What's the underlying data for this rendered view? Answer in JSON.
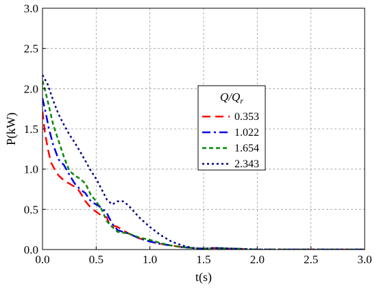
{
  "chart_data": {
    "type": "line",
    "xlabel": "t(s)",
    "ylabel": "P(kW)",
    "xlim": [
      0,
      3.0
    ],
    "ylim": [
      0,
      3.0
    ],
    "xticks": [
      "0.0",
      "0.5",
      "1.0",
      "1.5",
      "2.0",
      "2.5",
      "3.0"
    ],
    "yticks": [
      "0.0",
      "0.5",
      "1.0",
      "1.5",
      "2.0",
      "2.5",
      "3.0"
    ],
    "grid": true,
    "legend": {
      "title": "Q/Qr",
      "placement": "center-right"
    },
    "series": [
      {
        "name": "0.353",
        "color": "#ff0000",
        "dash": "dash",
        "x": [
          0.0,
          0.02,
          0.05,
          0.08,
          0.12,
          0.15,
          0.2,
          0.25,
          0.3,
          0.33,
          0.36,
          0.4,
          0.45,
          0.5,
          0.55,
          0.6,
          0.62,
          0.65,
          0.7,
          0.8,
          0.9,
          1.0,
          1.1,
          1.2,
          1.3,
          1.4,
          1.5,
          1.6,
          1.7,
          1.8,
          2.0,
          2.5,
          3.0
        ],
        "y": [
          1.72,
          1.48,
          1.25,
          1.08,
          0.98,
          0.92,
          0.86,
          0.82,
          0.78,
          0.75,
          0.69,
          0.6,
          0.52,
          0.47,
          0.42,
          0.4,
          0.32,
          0.3,
          0.28,
          0.2,
          0.14,
          0.1,
          0.07,
          0.05,
          0.03,
          0.02,
          0.01,
          0.02,
          0.01,
          0.01,
          0.0,
          0.0,
          0.0
        ]
      },
      {
        "name": "1.022",
        "color": "#0000ee",
        "dash": "dashdot",
        "x": [
          0.0,
          0.03,
          0.06,
          0.1,
          0.15,
          0.2,
          0.25,
          0.3,
          0.35,
          0.4,
          0.45,
          0.5,
          0.55,
          0.6,
          0.65,
          0.7,
          0.8,
          0.9,
          1.0,
          1.1,
          1.2,
          1.3,
          1.4,
          1.5,
          1.6,
          1.8,
          2.0,
          2.5,
          3.0
        ],
        "y": [
          1.88,
          1.7,
          1.5,
          1.3,
          1.12,
          1.05,
          0.93,
          0.82,
          0.75,
          0.7,
          0.6,
          0.56,
          0.52,
          0.45,
          0.32,
          0.24,
          0.2,
          0.14,
          0.1,
          0.07,
          0.05,
          0.03,
          0.02,
          0.01,
          0.02,
          0.01,
          0.0,
          0.0,
          0.0
        ]
      },
      {
        "name": "1.654",
        "color": "#008800",
        "dash": "shortdash",
        "x": [
          0.0,
          0.03,
          0.06,
          0.1,
          0.15,
          0.2,
          0.25,
          0.3,
          0.35,
          0.4,
          0.45,
          0.5,
          0.55,
          0.6,
          0.65,
          0.7,
          0.8,
          0.9,
          1.0,
          1.1,
          1.2,
          1.3,
          1.4,
          1.5,
          1.6,
          1.8,
          2.0,
          2.5,
          3.0
        ],
        "y": [
          2.1,
          1.95,
          1.78,
          1.55,
          1.35,
          1.15,
          0.98,
          0.92,
          0.88,
          0.82,
          0.68,
          0.6,
          0.5,
          0.35,
          0.28,
          0.22,
          0.2,
          0.15,
          0.12,
          0.08,
          0.05,
          0.03,
          0.02,
          0.01,
          0.02,
          0.01,
          0.0,
          0.0,
          0.0
        ]
      },
      {
        "name": "2.343",
        "color": "#000080",
        "dash": "dot",
        "x": [
          0.0,
          0.05,
          0.1,
          0.15,
          0.2,
          0.25,
          0.3,
          0.35,
          0.4,
          0.45,
          0.5,
          0.55,
          0.6,
          0.65,
          0.7,
          0.75,
          0.8,
          0.9,
          1.0,
          1.1,
          1.2,
          1.3,
          1.4,
          1.5,
          1.6,
          1.8,
          2.0,
          2.5,
          3.0
        ],
        "y": [
          2.17,
          2.05,
          1.85,
          1.68,
          1.55,
          1.43,
          1.33,
          1.22,
          1.1,
          0.98,
          0.88,
          0.75,
          0.62,
          0.56,
          0.6,
          0.6,
          0.55,
          0.4,
          0.28,
          0.18,
          0.1,
          0.05,
          0.02,
          0.01,
          0.02,
          0.01,
          0.0,
          0.0,
          0.0
        ]
      }
    ]
  }
}
